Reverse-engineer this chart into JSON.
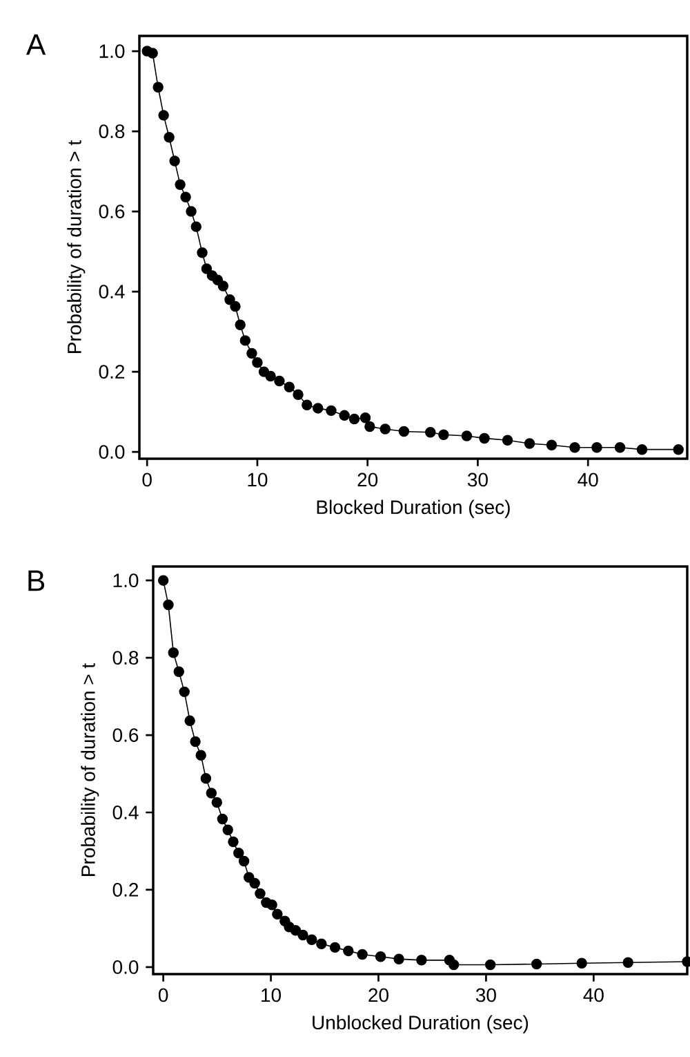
{
  "chart_data": [
    {
      "type": "line",
      "title": "A",
      "xlabel": "Blocked Duration (sec)",
      "ylabel": "Probability of duration > t",
      "color": "#000000",
      "marker": "circle",
      "line_style": "solid",
      "xlim": [
        -0.7,
        49
      ],
      "ylim": [
        -0.017,
        1.038
      ],
      "xticks": [
        0,
        10,
        20,
        30,
        40
      ],
      "yticks": [
        {
          "value": 0,
          "label": "0.0"
        },
        {
          "value": 0.2,
          "label": "0.2"
        },
        {
          "value": 0.4,
          "label": "0.4"
        },
        {
          "value": 0.6,
          "label": "0.6"
        },
        {
          "value": 0.8,
          "label": "0.8"
        },
        {
          "value": 1,
          "label": "1.0"
        }
      ],
      "x": [
        0,
        0.5,
        1.0,
        1.5,
        2.0,
        2.5,
        3.0,
        3.5,
        4.0,
        4.45,
        5.0,
        5.4,
        5.9,
        6.4,
        6.9,
        7.5,
        8.0,
        8.45,
        8.9,
        9.5,
        10,
        10.6,
        11.2,
        12.0,
        12.9,
        13.7,
        14.5,
        15.5,
        16.7,
        17.9,
        18.8,
        19.8,
        20.2,
        21.6,
        23.3,
        25.7,
        26.9,
        29,
        30.6,
        32.7,
        34.7,
        36.7,
        38.8,
        40.8,
        42.9,
        44.9,
        48.2
      ],
      "values": [
        1.0,
        0.995,
        0.91,
        0.84,
        0.785,
        0.726,
        0.667,
        0.636,
        0.6,
        0.562,
        0.497,
        0.457,
        0.44,
        0.429,
        0.414,
        0.38,
        0.363,
        0.317,
        0.278,
        0.246,
        0.223,
        0.2,
        0.189,
        0.177,
        0.162,
        0.143,
        0.117,
        0.109,
        0.103,
        0.091,
        0.082,
        0.085,
        0.063,
        0.057,
        0.051,
        0.049,
        0.043,
        0.04,
        0.034,
        0.029,
        0.021,
        0.017,
        0.011,
        0.011,
        0.011,
        0.006,
        0.006
      ]
    },
    {
      "type": "line",
      "title": "B",
      "xlabel": "Unblocked Duration (sec)",
      "ylabel": "Probability of duration > t",
      "color": "#000000",
      "marker": "circle",
      "line_style": "solid",
      "xlim": [
        -0.94,
        48.7
      ],
      "ylim": [
        -0.018,
        1.036
      ],
      "xticks": [
        0,
        10,
        20,
        30,
        40
      ],
      "yticks": [
        {
          "value": 0,
          "label": "0.0"
        },
        {
          "value": 0.2,
          "label": "0.2"
        },
        {
          "value": 0.4,
          "label": "0.4"
        },
        {
          "value": 0.6,
          "label": "0.6"
        },
        {
          "value": 0.8,
          "label": "0.8"
        },
        {
          "value": 1,
          "label": "1.0"
        }
      ],
      "x": [
        0,
        0.47,
        0.94,
        1.45,
        1.96,
        2.47,
        2.98,
        3.5,
        3.96,
        4.47,
        4.98,
        5.5,
        6.0,
        6.5,
        7.0,
        7.5,
        7.96,
        8.5,
        9.0,
        9.57,
        10.1,
        10.6,
        11.3,
        11.7,
        12.3,
        12.98,
        13.8,
        14.7,
        15.96,
        17.2,
        18.5,
        20.2,
        21.9,
        24.0,
        26.6,
        27.0,
        30.4,
        34.7,
        38.9,
        43.2,
        48.7
      ],
      "values": [
        1.0,
        0.937,
        0.813,
        0.764,
        0.712,
        0.637,
        0.583,
        0.548,
        0.488,
        0.45,
        0.426,
        0.383,
        0.355,
        0.324,
        0.295,
        0.274,
        0.232,
        0.217,
        0.19,
        0.167,
        0.161,
        0.137,
        0.119,
        0.104,
        0.095,
        0.083,
        0.071,
        0.06,
        0.051,
        0.042,
        0.033,
        0.027,
        0.021,
        0.018,
        0.018,
        0.006,
        0.006,
        0.008,
        0.01,
        0.012,
        0.014
      ]
    }
  ]
}
